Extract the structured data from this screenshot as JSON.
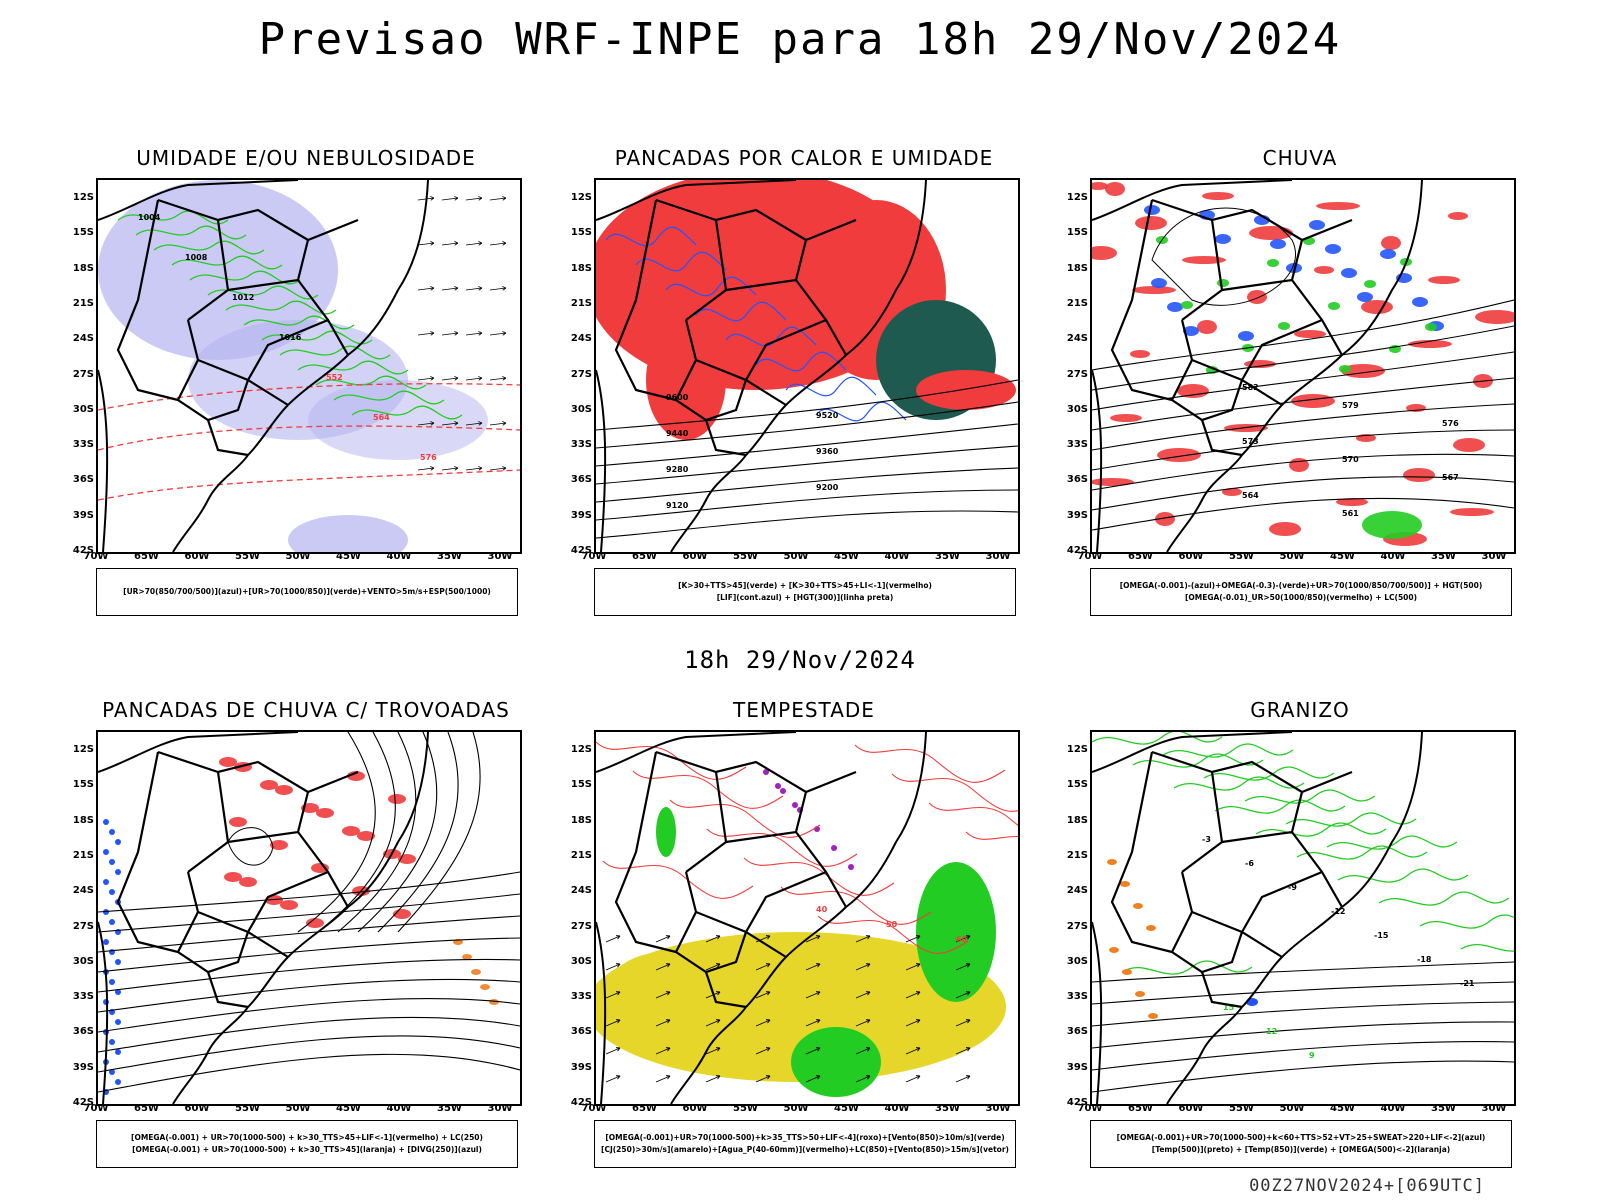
{
  "title": "Previsao WRF-INPE  para 18h 29/Nov/2024",
  "mid_label": "18h 29/Nov/2024",
  "footer": "00Z27NOV2024+[069UTC]",
  "axes": {
    "lat_labels": [
      "12S",
      "15S",
      "18S",
      "21S",
      "24S",
      "27S",
      "30S",
      "33S",
      "36S",
      "39S",
      "42S"
    ],
    "lon_labels": [
      "70W",
      "65W",
      "60W",
      "55W",
      "50W",
      "45W",
      "40W",
      "35W",
      "30W"
    ]
  },
  "colors": {
    "red": "#f03c3c",
    "green": "#22cc22",
    "blue": "#2255ff",
    "lavender": "#b4b4f0",
    "yellow": "#e6d62a",
    "darkteal": "#1e5a50",
    "purple": "#a020c0",
    "orange": "#f08020",
    "black": "#000000"
  },
  "panels": [
    {
      "title": "UMIDADE E/OU NEBULOSIDADE",
      "legend": [
        "[UR>70(850/700/500)](azul)+[UR>70(1000/850)](verde)+VENTO>5m/s+ESP(500/1000)"
      ],
      "contour_labels": [
        "1004",
        "1008",
        "1012",
        "1016",
        "552",
        "564",
        "576"
      ]
    },
    {
      "title": "PANCADAS POR CALOR E UMIDADE",
      "legend": [
        "[K>30+TTS>45](verde) + [K>30+TTS>45+LI<-1](vermelho)",
        "[LIF](cont.azul) + [HGT(300)](linha preta)"
      ],
      "contour_labels": [
        "9600",
        "9520",
        "9440",
        "9360",
        "9280",
        "9200",
        "9120"
      ]
    },
    {
      "title": "CHUVA",
      "legend": [
        "[OMEGA(-0.001)-(azul)+OMEGA(-0.3)-(verde)+UR>70(1000/850/700/500)] + HGT(500)",
        "[OMEGA(-0.01)_UR>50(1000/850)(vermelho) + LC(500)"
      ],
      "contour_labels": [
        "582",
        "579",
        "576",
        "573",
        "570",
        "567",
        "564",
        "561"
      ]
    },
    {
      "title": "PANCADAS DE CHUVA C/ TROVOADAS",
      "legend": [
        "[OMEGA(-0.001) + UR>70(1000-500) + k>30_TTS>45+LIF<-1](vermelho) + LC(250)",
        "[OMEGA(-0.001) + UR>70(1000-500) + k>30_TTS>45](laranja) + [DIVG(250)](azul)"
      ],
      "contour_labels": []
    },
    {
      "title": "TEMPESTADE",
      "legend": [
        "[OMEGA(-0.001)+UR>70(1000-500)+k>35_TTS>50+LIF<-4](roxo)+[Vento(850)>10m/s](verde)",
        "[CJ(250)>30m/s](amarelo)+[Agua_P(40-60mm)](vermelho)+LC(850)+[Vento(850)>15m/s](vetor)"
      ],
      "contour_labels": [
        "40",
        "50",
        "60"
      ]
    },
    {
      "title": "GRANIZO",
      "legend": [
        "[OMEGA(-0.001)+UR>70(1000-500)+k<60+TTS>52+VT>25+SWEAT>220+LIF<-2](azul)",
        "[Temp(500)](preto) + [Temp(850)](verde) + [OMEGA(500)<-2](laranja)"
      ],
      "contour_labels": [
        "-3",
        "-6",
        "-9",
        "-12",
        "-15",
        "-18",
        "-21",
        "15",
        "12",
        "9"
      ]
    }
  ]
}
